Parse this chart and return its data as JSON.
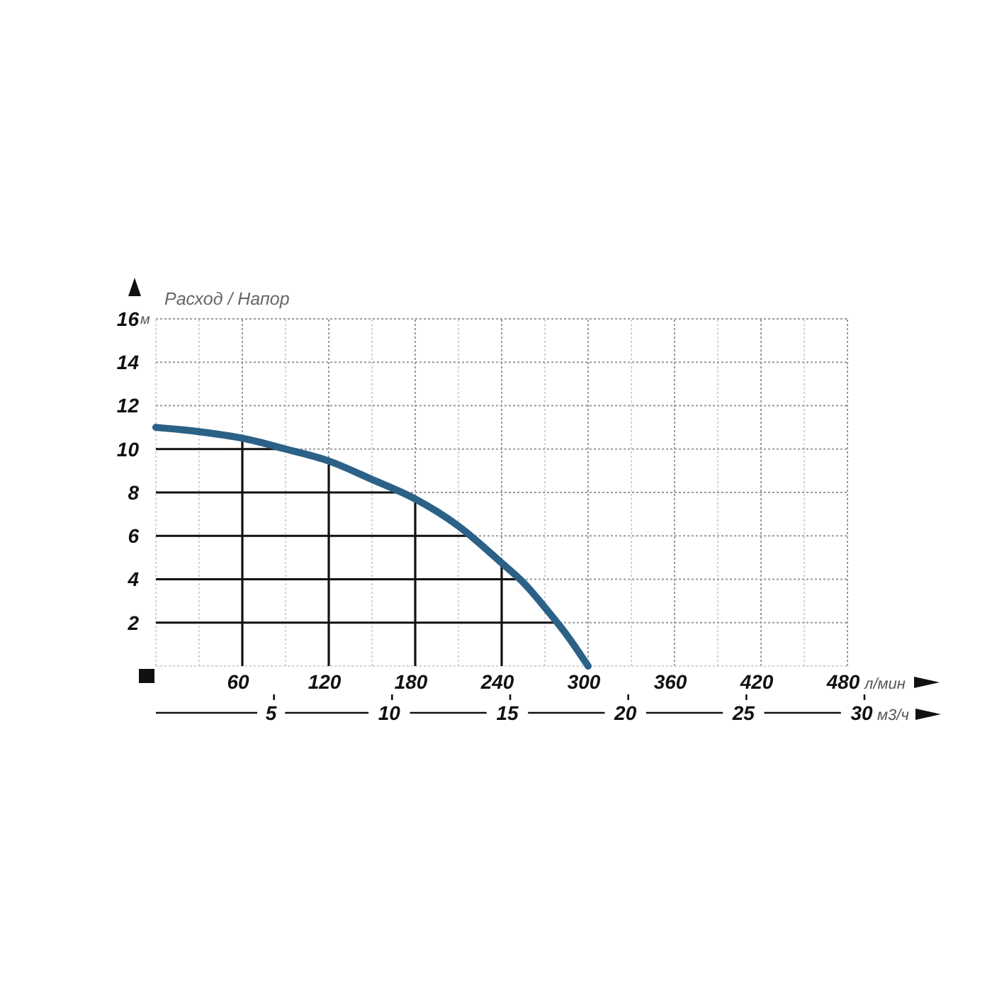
{
  "chart_data": {
    "type": "line",
    "title": "Расход / Напор",
    "xlabel": "л/мин",
    "ylabel": "м",
    "x2label": "м3/ч",
    "x": [
      0,
      30,
      60,
      90,
      120,
      150,
      180,
      210,
      240,
      255,
      270,
      285,
      300
    ],
    "series": [
      {
        "color": "#2b6187",
        "values": [
          11.0,
          10.8,
          10.5,
          10.0,
          9.45,
          8.6,
          7.7,
          6.45,
          4.75,
          3.85,
          2.7,
          1.45,
          0
        ]
      }
    ],
    "xlim": [
      0,
      480
    ],
    "xticks": [
      {
        "value": 0,
        "label": null
      },
      {
        "value": 30,
        "label": null
      },
      60,
      {
        "value": 90,
        "label": null
      },
      120,
      {
        "value": 150,
        "label": null
      },
      180,
      {
        "value": 210,
        "label": null
      },
      240,
      {
        "value": 270,
        "label": null
      },
      300,
      {
        "value": 330,
        "label": null
      },
      360,
      {
        "value": 390,
        "label": null
      },
      420,
      {
        "value": 450,
        "label": null
      },
      480
    ],
    "ylim": [
      0,
      16
    ],
    "yticks": [
      {
        "value": 0,
        "label": null
      },
      2,
      4,
      6,
      8,
      10,
      12,
      14,
      16
    ],
    "x2lim": [
      0,
      30
    ],
    "x2ticks": [
      5,
      10,
      15,
      20,
      25,
      30
    ],
    "grid": true,
    "line_style": "solid"
  }
}
